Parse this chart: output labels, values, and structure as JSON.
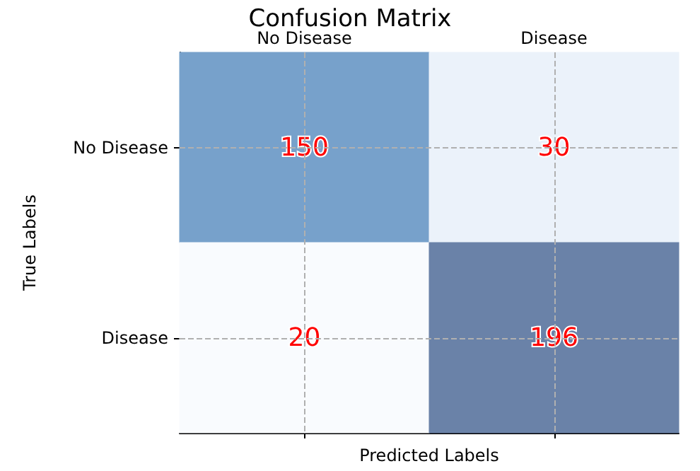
{
  "chart_data": {
    "type": "heatmap",
    "title": "Confusion Matrix",
    "xlabel": "Predicted Labels",
    "ylabel": "True Labels",
    "categories": [
      "No Disease",
      "Disease"
    ],
    "y_categories": [
      "No Disease",
      "Disease"
    ],
    "cells": [
      [
        150,
        30
      ],
      [
        20,
        196
      ]
    ],
    "data_labels": true,
    "grid": true
  }
}
